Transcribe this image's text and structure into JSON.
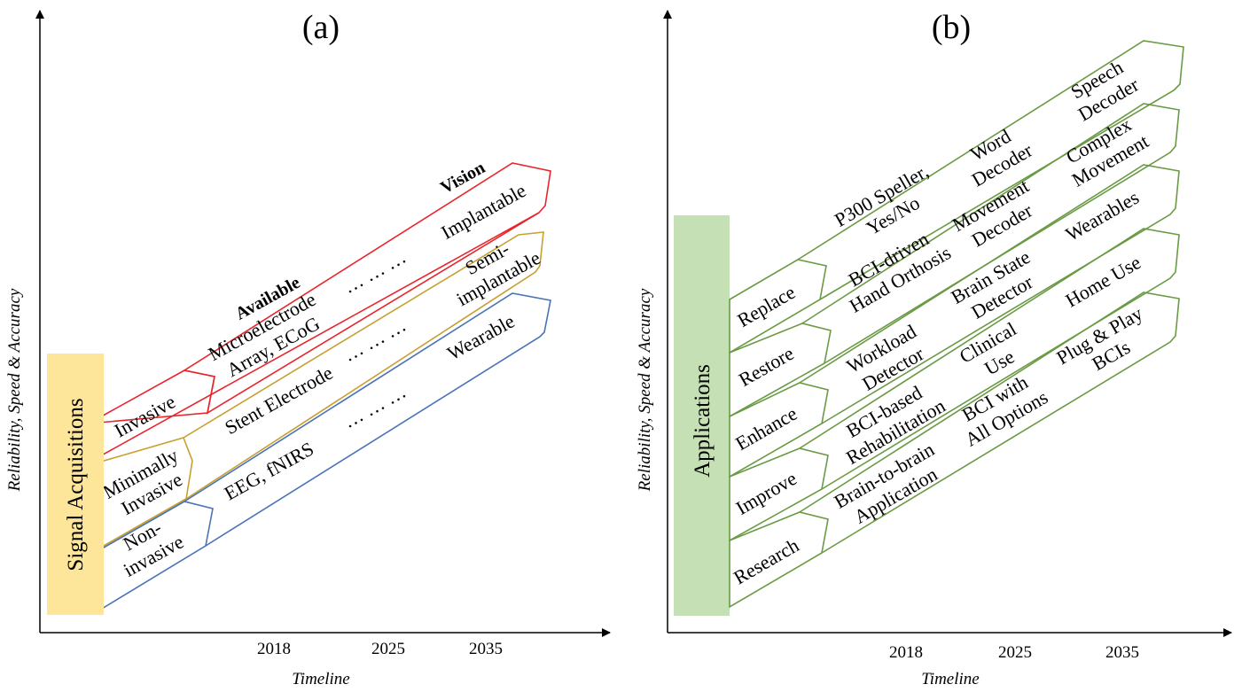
{
  "colors": {
    "invasive": "#e8252b",
    "minimally": "#c8a030",
    "noninvasive": "#4a72b8",
    "applications": "#6a9a44",
    "signal_box": "#fde69a",
    "app_box": "#c4e0b4"
  },
  "panel_a": {
    "title": "(a)",
    "y_axis": "Reliability, Speed & Accuracy",
    "x_axis": "Timeline",
    "years": [
      "2018",
      "2025",
      "2035"
    ],
    "box_label": "Signal Acquisitions",
    "available_label": "Available",
    "vision_label": "Vision",
    "rows": [
      {
        "name": "invasive",
        "label": [
          "Invasive"
        ],
        "items": [
          [
            "Microelectrode",
            "Array, ECoG"
          ],
          [
            "… … …"
          ],
          [
            "Implantable"
          ]
        ]
      },
      {
        "name": "minimally",
        "label": [
          "Minimally",
          "Invasive"
        ],
        "items": [
          [
            "Stent Electrode"
          ],
          [
            "… … …"
          ],
          [
            "Semi-",
            "implantable"
          ]
        ]
      },
      {
        "name": "noninvasive",
        "label": [
          "Non-",
          "invasive"
        ],
        "items": [
          [
            "EEG, fNIRS"
          ],
          [
            "… … …"
          ],
          [
            "Wearable"
          ]
        ]
      }
    ]
  },
  "panel_b": {
    "title": "(b)",
    "y_axis": "Reliability, Speed & Accuracy",
    "x_axis": "Timeline",
    "years": [
      "2018",
      "2025",
      "2035"
    ],
    "box_label": "Applications",
    "rows": [
      {
        "name": "replace",
        "label": [
          "Replace"
        ],
        "items": [
          [
            "P300 Speller,",
            "Yes/No"
          ],
          [
            "Word",
            "Decoder"
          ],
          [
            "Speech",
            "Decoder"
          ]
        ]
      },
      {
        "name": "restore",
        "label": [
          "Restore"
        ],
        "items": [
          [
            "BCI-driven",
            "Hand Orthosis"
          ],
          [
            "Movement",
            "Decoder"
          ],
          [
            "Complex",
            "Movement"
          ]
        ]
      },
      {
        "name": "enhance",
        "label": [
          "Enhance"
        ],
        "items": [
          [
            "Workload",
            "Detector"
          ],
          [
            "Brain State",
            "Detector"
          ],
          [
            "Wearables"
          ]
        ]
      },
      {
        "name": "improve",
        "label": [
          "Improve"
        ],
        "items": [
          [
            "BCI-based",
            "Rehabilitation"
          ],
          [
            "Clinical",
            "Use"
          ],
          [
            "Home Use"
          ]
        ]
      },
      {
        "name": "research",
        "label": [
          "Research"
        ],
        "items": [
          [
            "Brain-to-brain",
            "Application"
          ],
          [
            "BCI with",
            "All Options"
          ],
          [
            "Plug & Play",
            "BCIs"
          ]
        ]
      }
    ]
  }
}
